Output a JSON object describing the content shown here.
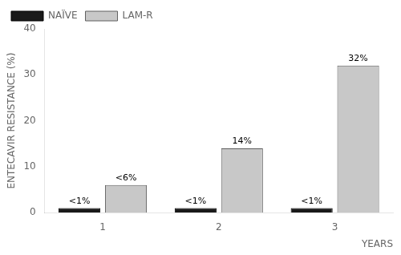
{
  "chart_data": {
    "type": "bar",
    "categories": [
      "1",
      "2",
      "3"
    ],
    "series": [
      {
        "name": "NAÏVE",
        "color": "#1a1a1a",
        "values": [
          1,
          1,
          1
        ],
        "value_labels": [
          "<1%",
          "<1%",
          "<1%"
        ]
      },
      {
        "name": "LAM-R",
        "color": "#c8c8c8",
        "values": [
          6,
          14,
          32
        ],
        "value_labels": [
          "<6%",
          "14%",
          "32%"
        ]
      }
    ],
    "xlabel": "YEARS",
    "ylabel": "ENTECAVIR RESISTANCE (%)",
    "ylim": [
      0,
      40
    ],
    "yticks": [
      0,
      10,
      20,
      30,
      40
    ],
    "grid": false,
    "legend": "upper left",
    "data_labels": true
  }
}
